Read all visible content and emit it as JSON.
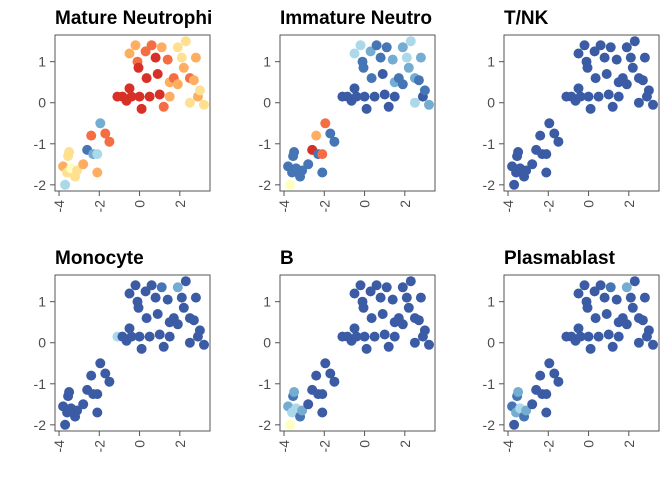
{
  "chart_data": {
    "type": "scatter",
    "xlim": [
      -4.2,
      3.5
    ],
    "ylim": [
      -2.15,
      1.65
    ],
    "x_ticks": [
      -4,
      -2,
      0,
      2
    ],
    "x_tick_labels": [
      "-4",
      "-2",
      "0",
      "2"
    ],
    "y_ticks": [
      -2,
      -1,
      0,
      1
    ],
    "y_tick_labels": [
      "-2",
      "-1",
      "0",
      "1"
    ],
    "grid": false,
    "legend": "none",
    "colormap": [
      "#3b5ba5",
      "#4575b4",
      "#74add1",
      "#abd9e9",
      "#ffffbf",
      "#fee090",
      "#fdae61",
      "#f46d43",
      "#d73027"
    ],
    "points": [
      {
        "x": -3.8,
        "y": -1.55
      },
      {
        "x": -3.7,
        "y": -2.0
      },
      {
        "x": -3.6,
        "y": -1.7
      },
      {
        "x": -3.55,
        "y": -1.3
      },
      {
        "x": -3.5,
        "y": -1.2
      },
      {
        "x": -3.4,
        "y": -1.6
      },
      {
        "x": -3.2,
        "y": -1.8
      },
      {
        "x": -3.1,
        "y": -1.65
      },
      {
        "x": -2.8,
        "y": -1.5
      },
      {
        "x": -2.6,
        "y": -1.15
      },
      {
        "x": -2.4,
        "y": -0.8
      },
      {
        "x": -2.3,
        "y": -1.25
      },
      {
        "x": -2.1,
        "y": -1.25
      },
      {
        "x": -2.1,
        "y": -1.7
      },
      {
        "x": -1.95,
        "y": -0.5
      },
      {
        "x": -1.7,
        "y": -0.75
      },
      {
        "x": -1.5,
        "y": -0.95
      },
      {
        "x": -1.1,
        "y": 0.15
      },
      {
        "x": -0.85,
        "y": 0.15
      },
      {
        "x": -0.65,
        "y": 0.05
      },
      {
        "x": -0.5,
        "y": 0.35
      },
      {
        "x": -0.4,
        "y": 0.15
      },
      {
        "x": -0.5,
        "y": 1.2
      },
      {
        "x": -0.2,
        "y": 1.4
      },
      {
        "x": -0.1,
        "y": 1.0
      },
      {
        "x": -0.05,
        "y": 0.85
      },
      {
        "x": 0.0,
        "y": 0.15
      },
      {
        "x": 0.1,
        "y": -0.15
      },
      {
        "x": 0.3,
        "y": 1.25
      },
      {
        "x": 0.35,
        "y": 0.6
      },
      {
        "x": 0.5,
        "y": 0.15
      },
      {
        "x": 0.6,
        "y": 1.4
      },
      {
        "x": 0.8,
        "y": 1.1
      },
      {
        "x": 0.9,
        "y": 0.7
      },
      {
        "x": 1.0,
        "y": 0.2
      },
      {
        "x": 1.1,
        "y": 1.35
      },
      {
        "x": 1.2,
        "y": -0.1
      },
      {
        "x": 1.4,
        "y": 1.05
      },
      {
        "x": 1.5,
        "y": 0.5
      },
      {
        "x": 1.5,
        "y": 0.15
      },
      {
        "x": 1.7,
        "y": 0.6
      },
      {
        "x": 1.9,
        "y": 1.35
      },
      {
        "x": 1.9,
        "y": 0.45
      },
      {
        "x": 2.1,
        "y": 1.1
      },
      {
        "x": 2.2,
        "y": 0.85
      },
      {
        "x": 2.3,
        "y": 1.5
      },
      {
        "x": 2.5,
        "y": 0.6
      },
      {
        "x": 2.7,
        "y": 0.55
      },
      {
        "x": 2.5,
        "y": 0.0
      },
      {
        "x": 2.9,
        "y": 0.15
      },
      {
        "x": 3.0,
        "y": 0.3
      },
      {
        "x": 2.8,
        "y": 1.1
      },
      {
        "x": 3.2,
        "y": -0.05
      }
    ],
    "panels": [
      {
        "title": "Mature Neutrophi",
        "colors": [
          "#fdae61",
          "#abd9e9",
          "#fee090",
          "#fee090",
          "#fee090",
          "#ffffbf",
          "#fee090",
          "#fee090",
          "#fdae61",
          "#4575b4",
          "#f46d43",
          "#74add1",
          "#abd9e9",
          "#fdae61",
          "#74add1",
          "#f46d43",
          "#f46d43",
          "#d73027",
          "#d73027",
          "#d73027",
          "#d73027",
          "#d73027",
          "#fdae61",
          "#fdae61",
          "#f46d43",
          "#d73027",
          "#d73027",
          "#d73027",
          "#f46d43",
          "#d73027",
          "#d73027",
          "#f46d43",
          "#d73027",
          "#d73027",
          "#d73027",
          "#fdae61",
          "#f46d43",
          "#f46d43",
          "#fdae61",
          "#fdae61",
          "#f46d43",
          "#fee090",
          "#fdae61",
          "#fee090",
          "#fdae61",
          "#fee090",
          "#f46d43",
          "#fdae61",
          "#fee090",
          "#fdae61",
          "#fee090",
          "#fdae61",
          "#fee090"
        ]
      },
      {
        "title": "Immature Neutro",
        "colors": [
          "#4575b4",
          "#ffffbf",
          "#4575b4",
          "#4575b4",
          "#4575b4",
          "#4575b4",
          "#4575b4",
          "#4575b4",
          "#4575b4",
          "#d73027",
          "#fdae61",
          "#4575b4",
          "#f46d43",
          "#4575b4",
          "#f46d43",
          "#4575b4",
          "#4575b4",
          "#3b5ba5",
          "#3b5ba5",
          "#3b5ba5",
          "#3b5ba5",
          "#3b5ba5",
          "#abd9e9",
          "#abd9e9",
          "#4575b4",
          "#4575b4",
          "#3b5ba5",
          "#3b5ba5",
          "#74add1",
          "#4575b4",
          "#3b5ba5",
          "#4575b4",
          "#4575b4",
          "#3b5ba5",
          "#3b5ba5",
          "#4575b4",
          "#3b5ba5",
          "#74add1",
          "#74add1",
          "#3b5ba5",
          "#4575b4",
          "#74add1",
          "#4575b4",
          "#abd9e9",
          "#74add1",
          "#abd9e9",
          "#74add1",
          "#4575b4",
          "#abd9e9",
          "#3b5ba5",
          "#4575b4",
          "#74add1",
          "#74add1"
        ]
      },
      {
        "title": "T/NK",
        "colors": [
          "#3b5ba5",
          "#3b5ba5",
          "#3b5ba5",
          "#3b5ba5",
          "#3b5ba5",
          "#3b5ba5",
          "#3b5ba5",
          "#3b5ba5",
          "#3b5ba5",
          "#3b5ba5",
          "#3b5ba5",
          "#3b5ba5",
          "#3b5ba5",
          "#3b5ba5",
          "#3b5ba5",
          "#3b5ba5",
          "#3b5ba5",
          "#3b5ba5",
          "#3b5ba5",
          "#3b5ba5",
          "#3b5ba5",
          "#3b5ba5",
          "#3b5ba5",
          "#3b5ba5",
          "#3b5ba5",
          "#3b5ba5",
          "#3b5ba5",
          "#3b5ba5",
          "#3b5ba5",
          "#3b5ba5",
          "#3b5ba5",
          "#3b5ba5",
          "#3b5ba5",
          "#3b5ba5",
          "#3b5ba5",
          "#3b5ba5",
          "#3b5ba5",
          "#3b5ba5",
          "#3b5ba5",
          "#3b5ba5",
          "#3b5ba5",
          "#3b5ba5",
          "#3b5ba5",
          "#3b5ba5",
          "#3b5ba5",
          "#3b5ba5",
          "#3b5ba5",
          "#3b5ba5",
          "#3b5ba5",
          "#3b5ba5",
          "#3b5ba5",
          "#3b5ba5",
          "#3b5ba5"
        ]
      },
      {
        "title": "Monocyte",
        "colors": [
          "#3b5ba5",
          "#3b5ba5",
          "#3b5ba5",
          "#3b5ba5",
          "#3b5ba5",
          "#3b5ba5",
          "#3b5ba5",
          "#3b5ba5",
          "#3b5ba5",
          "#3b5ba5",
          "#3b5ba5",
          "#3b5ba5",
          "#3b5ba5",
          "#3b5ba5",
          "#3b5ba5",
          "#3b5ba5",
          "#3b5ba5",
          "#abd9e9",
          "#3b5ba5",
          "#3b5ba5",
          "#3b5ba5",
          "#3b5ba5",
          "#3b5ba5",
          "#3b5ba5",
          "#3b5ba5",
          "#3b5ba5",
          "#3b5ba5",
          "#3b5ba5",
          "#3b5ba5",
          "#3b5ba5",
          "#3b5ba5",
          "#3b5ba5",
          "#3b5ba5",
          "#3b5ba5",
          "#3b5ba5",
          "#4575b4",
          "#3b5ba5",
          "#3b5ba5",
          "#3b5ba5",
          "#3b5ba5",
          "#3b5ba5",
          "#74add1",
          "#3b5ba5",
          "#3b5ba5",
          "#3b5ba5",
          "#3b5ba5",
          "#3b5ba5",
          "#3b5ba5",
          "#3b5ba5",
          "#3b5ba5",
          "#3b5ba5",
          "#3b5ba5",
          "#3b5ba5"
        ]
      },
      {
        "title": "B",
        "colors": [
          "#74add1",
          "#ffffbf",
          "#abd9e9",
          "#4575b4",
          "#74add1",
          "#abd9e9",
          "#4575b4",
          "#74add1",
          "#3b5ba5",
          "#3b5ba5",
          "#3b5ba5",
          "#3b5ba5",
          "#3b5ba5",
          "#3b5ba5",
          "#3b5ba5",
          "#3b5ba5",
          "#3b5ba5",
          "#3b5ba5",
          "#3b5ba5",
          "#3b5ba5",
          "#3b5ba5",
          "#3b5ba5",
          "#3b5ba5",
          "#3b5ba5",
          "#3b5ba5",
          "#3b5ba5",
          "#3b5ba5",
          "#3b5ba5",
          "#3b5ba5",
          "#3b5ba5",
          "#3b5ba5",
          "#3b5ba5",
          "#3b5ba5",
          "#3b5ba5",
          "#3b5ba5",
          "#3b5ba5",
          "#3b5ba5",
          "#3b5ba5",
          "#3b5ba5",
          "#3b5ba5",
          "#3b5ba5",
          "#3b5ba5",
          "#3b5ba5",
          "#3b5ba5",
          "#3b5ba5",
          "#3b5ba5",
          "#3b5ba5",
          "#3b5ba5",
          "#3b5ba5",
          "#3b5ba5",
          "#3b5ba5",
          "#3b5ba5",
          "#3b5ba5"
        ]
      },
      {
        "title": "Plasmablast",
        "colors": [
          "#4575b4",
          "#3b5ba5",
          "#74add1",
          "#4575b4",
          "#74add1",
          "#abd9e9",
          "#4575b4",
          "#74add1",
          "#3b5ba5",
          "#3b5ba5",
          "#3b5ba5",
          "#3b5ba5",
          "#3b5ba5",
          "#3b5ba5",
          "#3b5ba5",
          "#3b5ba5",
          "#3b5ba5",
          "#3b5ba5",
          "#3b5ba5",
          "#3b5ba5",
          "#3b5ba5",
          "#3b5ba5",
          "#3b5ba5",
          "#3b5ba5",
          "#3b5ba5",
          "#3b5ba5",
          "#3b5ba5",
          "#3b5ba5",
          "#3b5ba5",
          "#3b5ba5",
          "#3b5ba5",
          "#3b5ba5",
          "#3b5ba5",
          "#3b5ba5",
          "#3b5ba5",
          "#4575b4",
          "#3b5ba5",
          "#3b5ba5",
          "#3b5ba5",
          "#3b5ba5",
          "#3b5ba5",
          "#74add1",
          "#3b5ba5",
          "#3b5ba5",
          "#3b5ba5",
          "#3b5ba5",
          "#3b5ba5",
          "#3b5ba5",
          "#3b5ba5",
          "#3b5ba5",
          "#3b5ba5",
          "#3b5ba5",
          "#3b5ba5"
        ]
      }
    ]
  }
}
